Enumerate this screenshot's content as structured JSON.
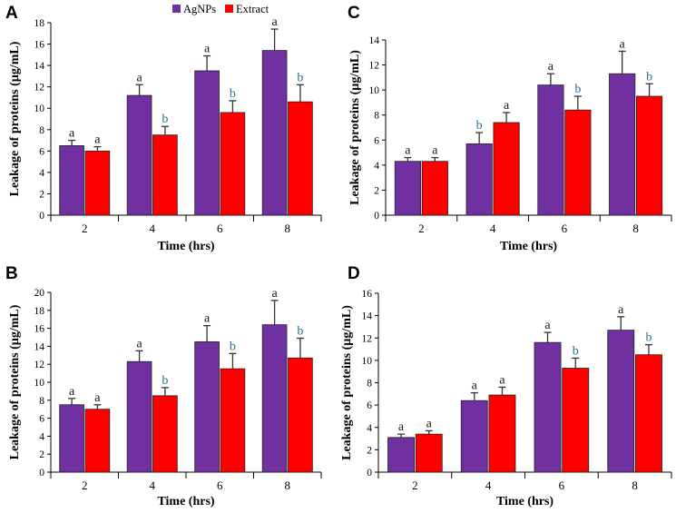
{
  "colors": {
    "agnps": "#7030a0",
    "extract": "#ff0000",
    "axis": "#000000",
    "errbar": "#333333"
  },
  "legend": {
    "items": [
      {
        "label": "AgNPs",
        "color": "#7030a0"
      },
      {
        "label": "Extract",
        "color": "#ff0000"
      }
    ],
    "placement": "top-center"
  },
  "chart_data": [
    {
      "panel": "A",
      "type": "bar",
      "categories": [
        "2",
        "4",
        "6",
        "8"
      ],
      "xlabel": "Time (hrs)",
      "ylabel": "Leakage of proteins (µg/mL)",
      "ylim": [
        0,
        18
      ],
      "yticks": [
        "0",
        "2",
        "4",
        "6",
        "8",
        "10",
        "12",
        "14",
        "16",
        "18"
      ],
      "series": [
        {
          "name": "AgNPs",
          "values": [
            6.5,
            11.2,
            13.5,
            15.4
          ],
          "errors": [
            0.5,
            1.0,
            1.4,
            2.0
          ],
          "sig": [
            "a",
            "a",
            "a",
            "a"
          ]
        },
        {
          "name": "Extract",
          "values": [
            6.0,
            7.5,
            9.6,
            10.6
          ],
          "errors": [
            0.4,
            0.8,
            1.1,
            1.6
          ],
          "sig": [
            "a",
            "b",
            "b",
            "b"
          ]
        }
      ]
    },
    {
      "panel": "C",
      "type": "bar",
      "categories": [
        "2",
        "4",
        "6",
        "8"
      ],
      "xlabel": "Time (hrs)",
      "ylabel": "Leakage of proteins (µg/mL)",
      "ylim": [
        0,
        14
      ],
      "yticks": [
        "0",
        "2",
        "4",
        "6",
        "8",
        "10",
        "12",
        "14"
      ],
      "series": [
        {
          "name": "AgNPs",
          "values": [
            4.3,
            5.7,
            10.4,
            11.3
          ],
          "errors": [
            0.3,
            0.9,
            0.9,
            1.8
          ],
          "sig": [
            "a",
            "b",
            "a",
            "a"
          ]
        },
        {
          "name": "Extract",
          "values": [
            4.3,
            7.4,
            8.4,
            9.5
          ],
          "errors": [
            0.3,
            0.8,
            1.1,
            1.0
          ],
          "sig": [
            "a",
            "a",
            "b",
            "b"
          ]
        }
      ]
    },
    {
      "panel": "B",
      "type": "bar",
      "categories": [
        "2",
        "4",
        "6",
        "8"
      ],
      "xlabel": "Time (hrs)",
      "ylabel": "Leakage of proteins (µg/mL)",
      "ylim": [
        0,
        20
      ],
      "yticks": [
        "0",
        "2",
        "4",
        "6",
        "8",
        "10",
        "12",
        "14",
        "16",
        "18",
        "20"
      ],
      "series": [
        {
          "name": "AgNPs",
          "values": [
            7.5,
            12.3,
            14.5,
            16.4
          ],
          "errors": [
            0.7,
            1.2,
            1.8,
            2.7
          ],
          "sig": [
            "a",
            "a",
            "a",
            "a"
          ]
        },
        {
          "name": "Extract",
          "values": [
            7.0,
            8.5,
            11.5,
            12.7
          ],
          "errors": [
            0.5,
            0.9,
            1.7,
            2.2
          ],
          "sig": [
            "a",
            "b",
            "b",
            "b"
          ]
        }
      ]
    },
    {
      "panel": "D",
      "type": "bar",
      "categories": [
        "2",
        "4",
        "6",
        "8"
      ],
      "xlabel": "Time (hrs)",
      "ylabel": "Leakage of proteins (µg/mL)",
      "ylim": [
        0,
        16
      ],
      "yticks": [
        "0",
        "2",
        "4",
        "6",
        "8",
        "10",
        "12",
        "14",
        "16"
      ],
      "series": [
        {
          "name": "AgNPs",
          "values": [
            3.1,
            6.4,
            11.6,
            12.7
          ],
          "errors": [
            0.3,
            0.7,
            0.9,
            1.2
          ],
          "sig": [
            "a",
            "a",
            "a",
            "a"
          ]
        },
        {
          "name": "Extract",
          "values": [
            3.4,
            6.9,
            9.3,
            10.5
          ],
          "errors": [
            0.3,
            0.7,
            0.9,
            0.9
          ],
          "sig": [
            "a",
            "a",
            "b",
            "b"
          ]
        }
      ]
    }
  ]
}
